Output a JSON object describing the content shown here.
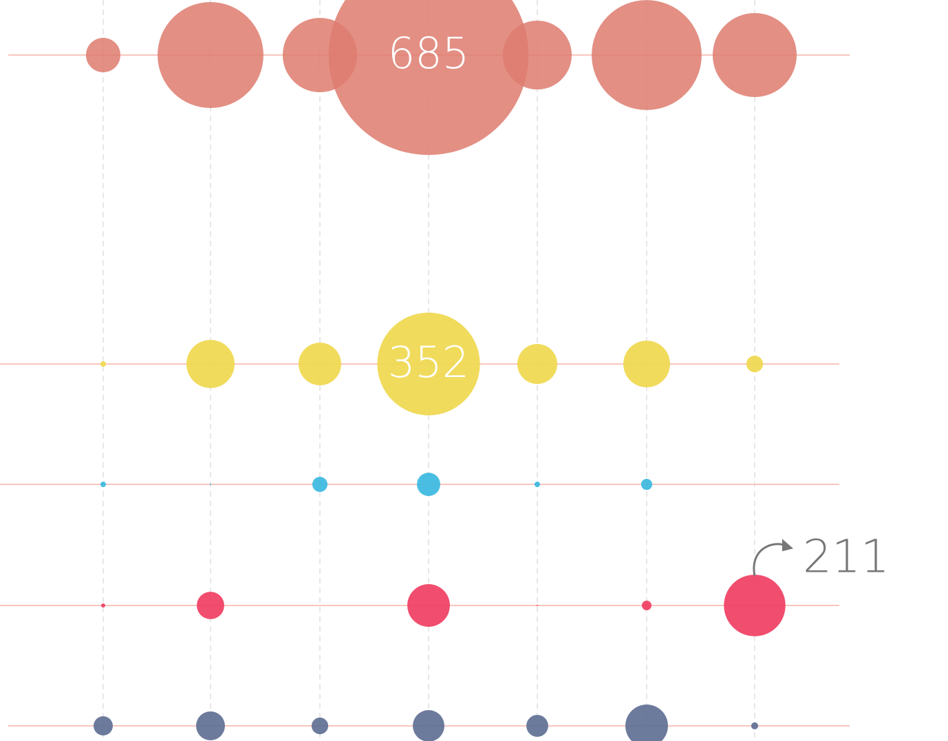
{
  "chart_data": {
    "type": "bubble",
    "categories": [
      null,
      null,
      null,
      null,
      null,
      null,
      null
    ],
    "series": [
      {
        "color": "#de7b6e",
        "values": [
          118,
          363,
          255,
          685,
          236,
          377,
          288
        ],
        "label_index": 3,
        "label_position": "inside"
      },
      {
        "color": "#efd84e",
        "values": [
          19,
          165,
          146,
          352,
          137,
          160,
          57
        ],
        "label_index": 3,
        "label_position": "inside"
      },
      {
        "color": "#3bb9e0",
        "values": [
          19,
          5,
          52,
          80,
          19,
          38,
          0
        ]
      },
      {
        "color": "#f03e62",
        "values": [
          14,
          94,
          0,
          146,
          5,
          33,
          211
        ],
        "label_index": 6,
        "label_position": "outside"
      },
      {
        "color": "#5f6f94",
        "values": [
          66,
          99,
          57,
          108,
          75,
          146,
          24
        ]
      }
    ]
  }
}
